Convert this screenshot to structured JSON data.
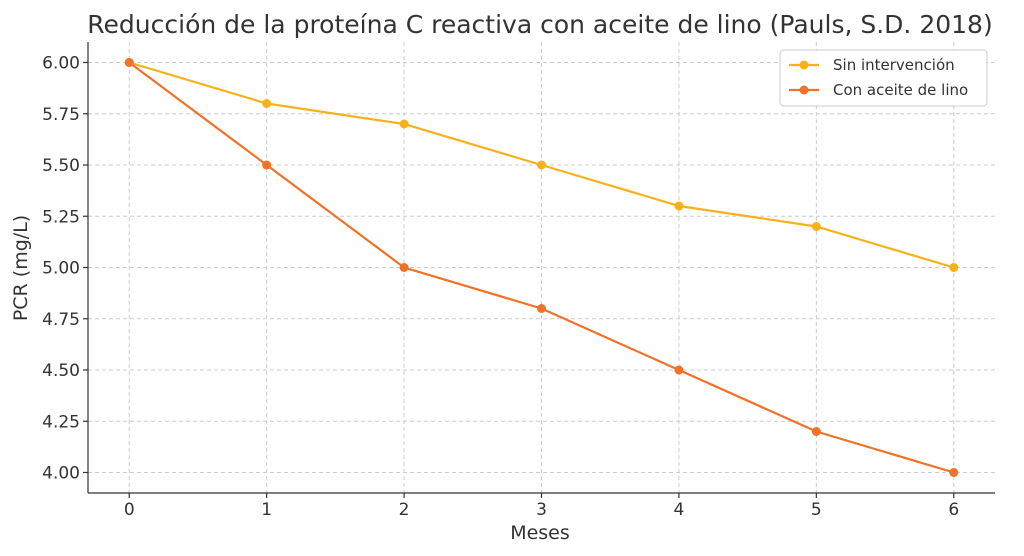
{
  "chart_data": {
    "type": "line",
    "title": "Reducción de la proteína C reactiva con aceite de lino (Pauls, S.D. 2018)",
    "xlabel": "Meses",
    "ylabel": "PCR (mg/L)",
    "x": [
      0,
      1,
      2,
      3,
      4,
      5,
      6
    ],
    "x_ticks": [
      "0",
      "1",
      "2",
      "3",
      "4",
      "5",
      "6"
    ],
    "xlim": [
      -0.3,
      6.3
    ],
    "y_ticks": [
      "4.00",
      "4.25",
      "4.50",
      "4.75",
      "5.00",
      "5.25",
      "5.50",
      "5.75",
      "6.00"
    ],
    "y_tick_values": [
      4.0,
      4.25,
      4.5,
      4.75,
      5.0,
      5.25,
      5.5,
      5.75,
      6.0
    ],
    "ylim": [
      3.9,
      6.1
    ],
    "grid": true,
    "legend_position": "top-right",
    "series": [
      {
        "name": "Sin intervención",
        "color": "#f7b21b",
        "values": [
          6.0,
          5.8,
          5.7,
          5.5,
          5.3,
          5.2,
          5.0
        ]
      },
      {
        "name": "Con aceite de lino",
        "color": "#f07228",
        "values": [
          6.0,
          5.5,
          5.0,
          4.8,
          4.5,
          4.2,
          4.0
        ]
      }
    ]
  }
}
